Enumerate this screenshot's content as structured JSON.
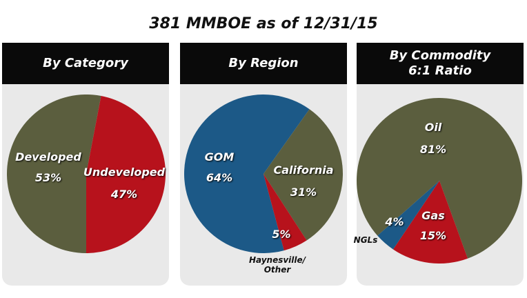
{
  "title": "381 MMBOE as of 12/31/15",
  "chart_data": [
    {
      "type": "pie",
      "title": "By Category",
      "categories": [
        "Developed",
        "Undeveloped"
      ],
      "values": [
        53,
        47
      ],
      "value_labels": [
        "53%",
        "47%"
      ],
      "colors": [
        "#5b5e3e",
        "#b7121c"
      ]
    },
    {
      "type": "pie",
      "title": "By Region",
      "categories": [
        "GOM",
        "California",
        "Haynesville/\nOther"
      ],
      "values": [
        64,
        31,
        5
      ],
      "value_labels": [
        "64%",
        "31%",
        "5%"
      ],
      "colors": [
        "#1c5987",
        "#5b5e3e",
        "#b7121c"
      ]
    },
    {
      "type": "pie",
      "title": "By Commodity\n6:1 Ratio",
      "categories": [
        "Oil",
        "Gas",
        "NGLs"
      ],
      "values": [
        81,
        15,
        4
      ],
      "value_labels": [
        "81%",
        "15%",
        "4%"
      ],
      "colors": [
        "#5b5e3e",
        "#b7121c",
        "#1c5987"
      ]
    }
  ]
}
